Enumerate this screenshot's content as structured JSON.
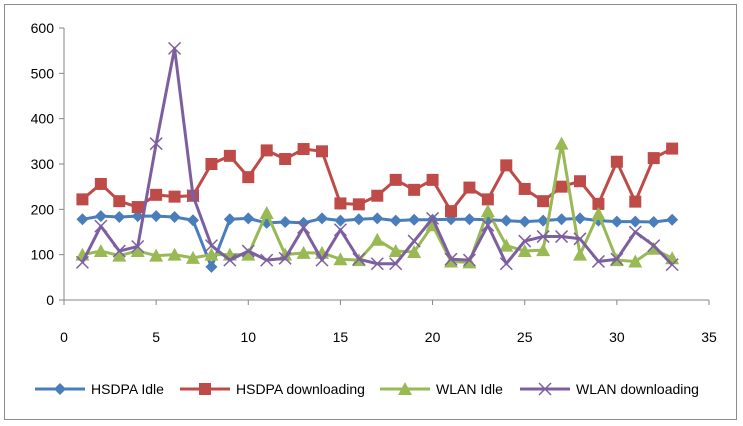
{
  "chart_data": {
    "type": "line",
    "title": "",
    "xlabel": "",
    "ylabel": "",
    "xlim": [
      0,
      35
    ],
    "ylim": [
      0,
      600
    ],
    "x_ticks": [
      "0",
      "5",
      "10",
      "15",
      "20",
      "25",
      "30",
      "35"
    ],
    "y_ticks": [
      "0",
      "100",
      "200",
      "300",
      "400",
      "500",
      "600"
    ],
    "grid": false,
    "legend_position": "bottom",
    "x": [
      1,
      2,
      3,
      4,
      5,
      6,
      7,
      8,
      9,
      10,
      11,
      12,
      13,
      14,
      15,
      16,
      17,
      18,
      19,
      20,
      21,
      22,
      23,
      24,
      25,
      26,
      27,
      28,
      29,
      30,
      31,
      32,
      33
    ],
    "series": [
      {
        "name": "HSDPA Idle",
        "color": "#4a7ebb",
        "marker": "diamond",
        "values": [
          178,
          185,
          183,
          185,
          185,
          183,
          176,
          73,
          178,
          180,
          170,
          172,
          170,
          180,
          175,
          178,
          180,
          175,
          177,
          177,
          178,
          178,
          177,
          175,
          173,
          175,
          178,
          180,
          175,
          173,
          173,
          172,
          177
        ]
      },
      {
        "name": "HSDPA downloading",
        "color": "#be4b48",
        "marker": "square",
        "values": [
          222,
          256,
          218,
          205,
          232,
          228,
          230,
          300,
          318,
          271,
          330,
          311,
          333,
          328,
          213,
          211,
          230,
          265,
          243,
          265,
          196,
          248,
          222,
          297,
          245,
          218,
          250,
          262,
          212,
          305,
          217,
          313,
          334
        ]
      },
      {
        "name": "WLAN Idle",
        "color": "#98b954",
        "marker": "triangle",
        "values": [
          100,
          108,
          98,
          108,
          98,
          100,
          93,
          100,
          100,
          100,
          192,
          100,
          104,
          104,
          90,
          88,
          133,
          108,
          106,
          165,
          85,
          83,
          196,
          120,
          108,
          110,
          345,
          100,
          190,
          88,
          85,
          113,
          92
        ]
      },
      {
        "name": "WLAN downloading",
        "color": "#7d5fa0",
        "marker": "x",
        "values": [
          83,
          163,
          108,
          118,
          345,
          555,
          230,
          120,
          88,
          108,
          88,
          92,
          160,
          88,
          155,
          90,
          80,
          80,
          130,
          180,
          90,
          88,
          165,
          80,
          130,
          140,
          140,
          135,
          85,
          90,
          150,
          120,
          78
        ]
      }
    ]
  }
}
